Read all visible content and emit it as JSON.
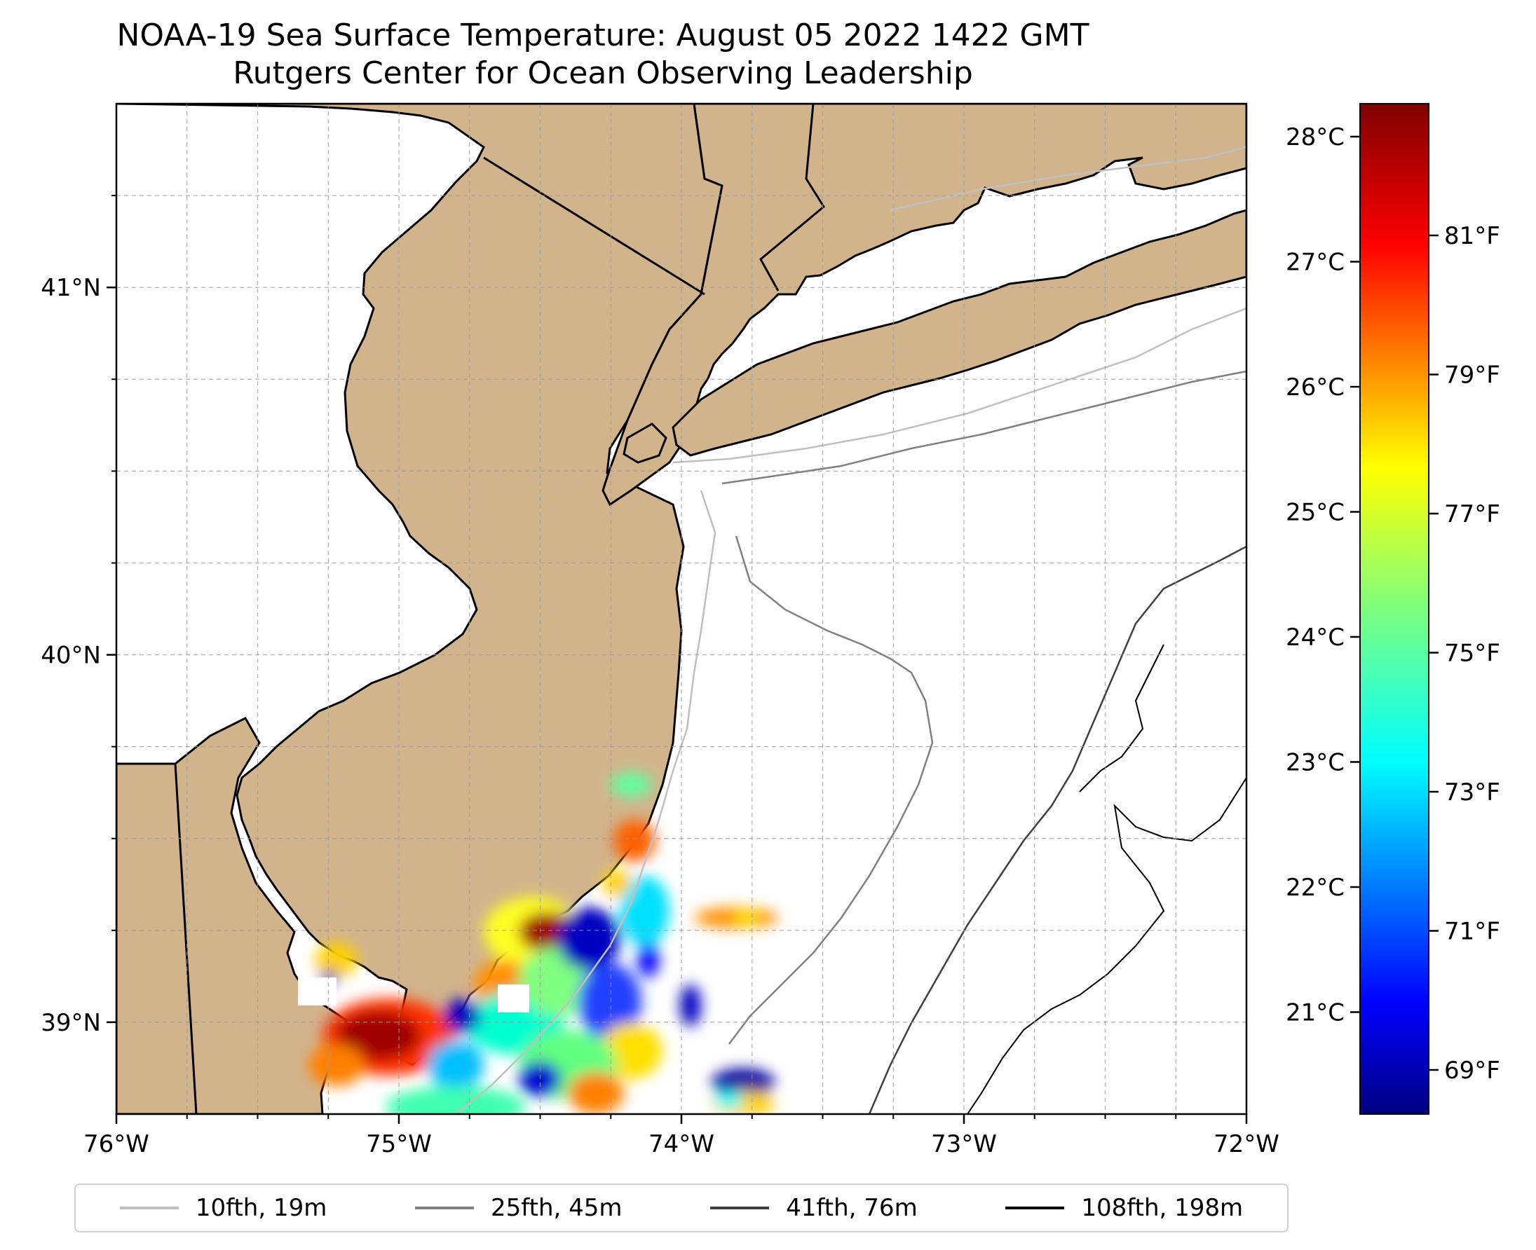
{
  "title": "NOAA-19 Sea Surface Temperature: August 05 2022 1422 GMT",
  "subtitle": "Rutgers Center for Ocean Observing Leadership",
  "map": {
    "extent": {
      "lon_min": -76.0,
      "lon_max": -72.0,
      "lat_min": 38.75,
      "lat_max": 41.5
    },
    "lon_ticks": [
      {
        "value": -76,
        "label": "76°W"
      },
      {
        "value": -75,
        "label": "75°W"
      },
      {
        "value": -74,
        "label": "74°W"
      },
      {
        "value": -73,
        "label": "73°W"
      },
      {
        "value": -72,
        "label": "72°W"
      }
    ],
    "lat_ticks": [
      {
        "value": 41,
        "label": "41°N"
      },
      {
        "value": 40,
        "label": "40°N"
      },
      {
        "value": 39,
        "label": "39°N"
      }
    ],
    "land_color": "#d2b48c",
    "gridlines": true
  },
  "colorbar": {
    "colormap": "jet",
    "celsius_ticks": [
      "28°C",
      "27°C",
      "26°C",
      "25°C",
      "24°C",
      "23°C",
      "22°C",
      "21°C"
    ],
    "fahrenheit_ticks": [
      "81°F",
      "79°F",
      "77°F",
      "75°F",
      "73°F",
      "71°F",
      "69°F"
    ]
  },
  "legend": [
    {
      "label": "10fth, 19m",
      "color": "#c0c0c0"
    },
    {
      "label": "25fth, 45m",
      "color": "#808080"
    },
    {
      "label": "41fth, 76m",
      "color": "#404040"
    },
    {
      "label": "108fth, 198m",
      "color": "#000000"
    }
  ]
}
